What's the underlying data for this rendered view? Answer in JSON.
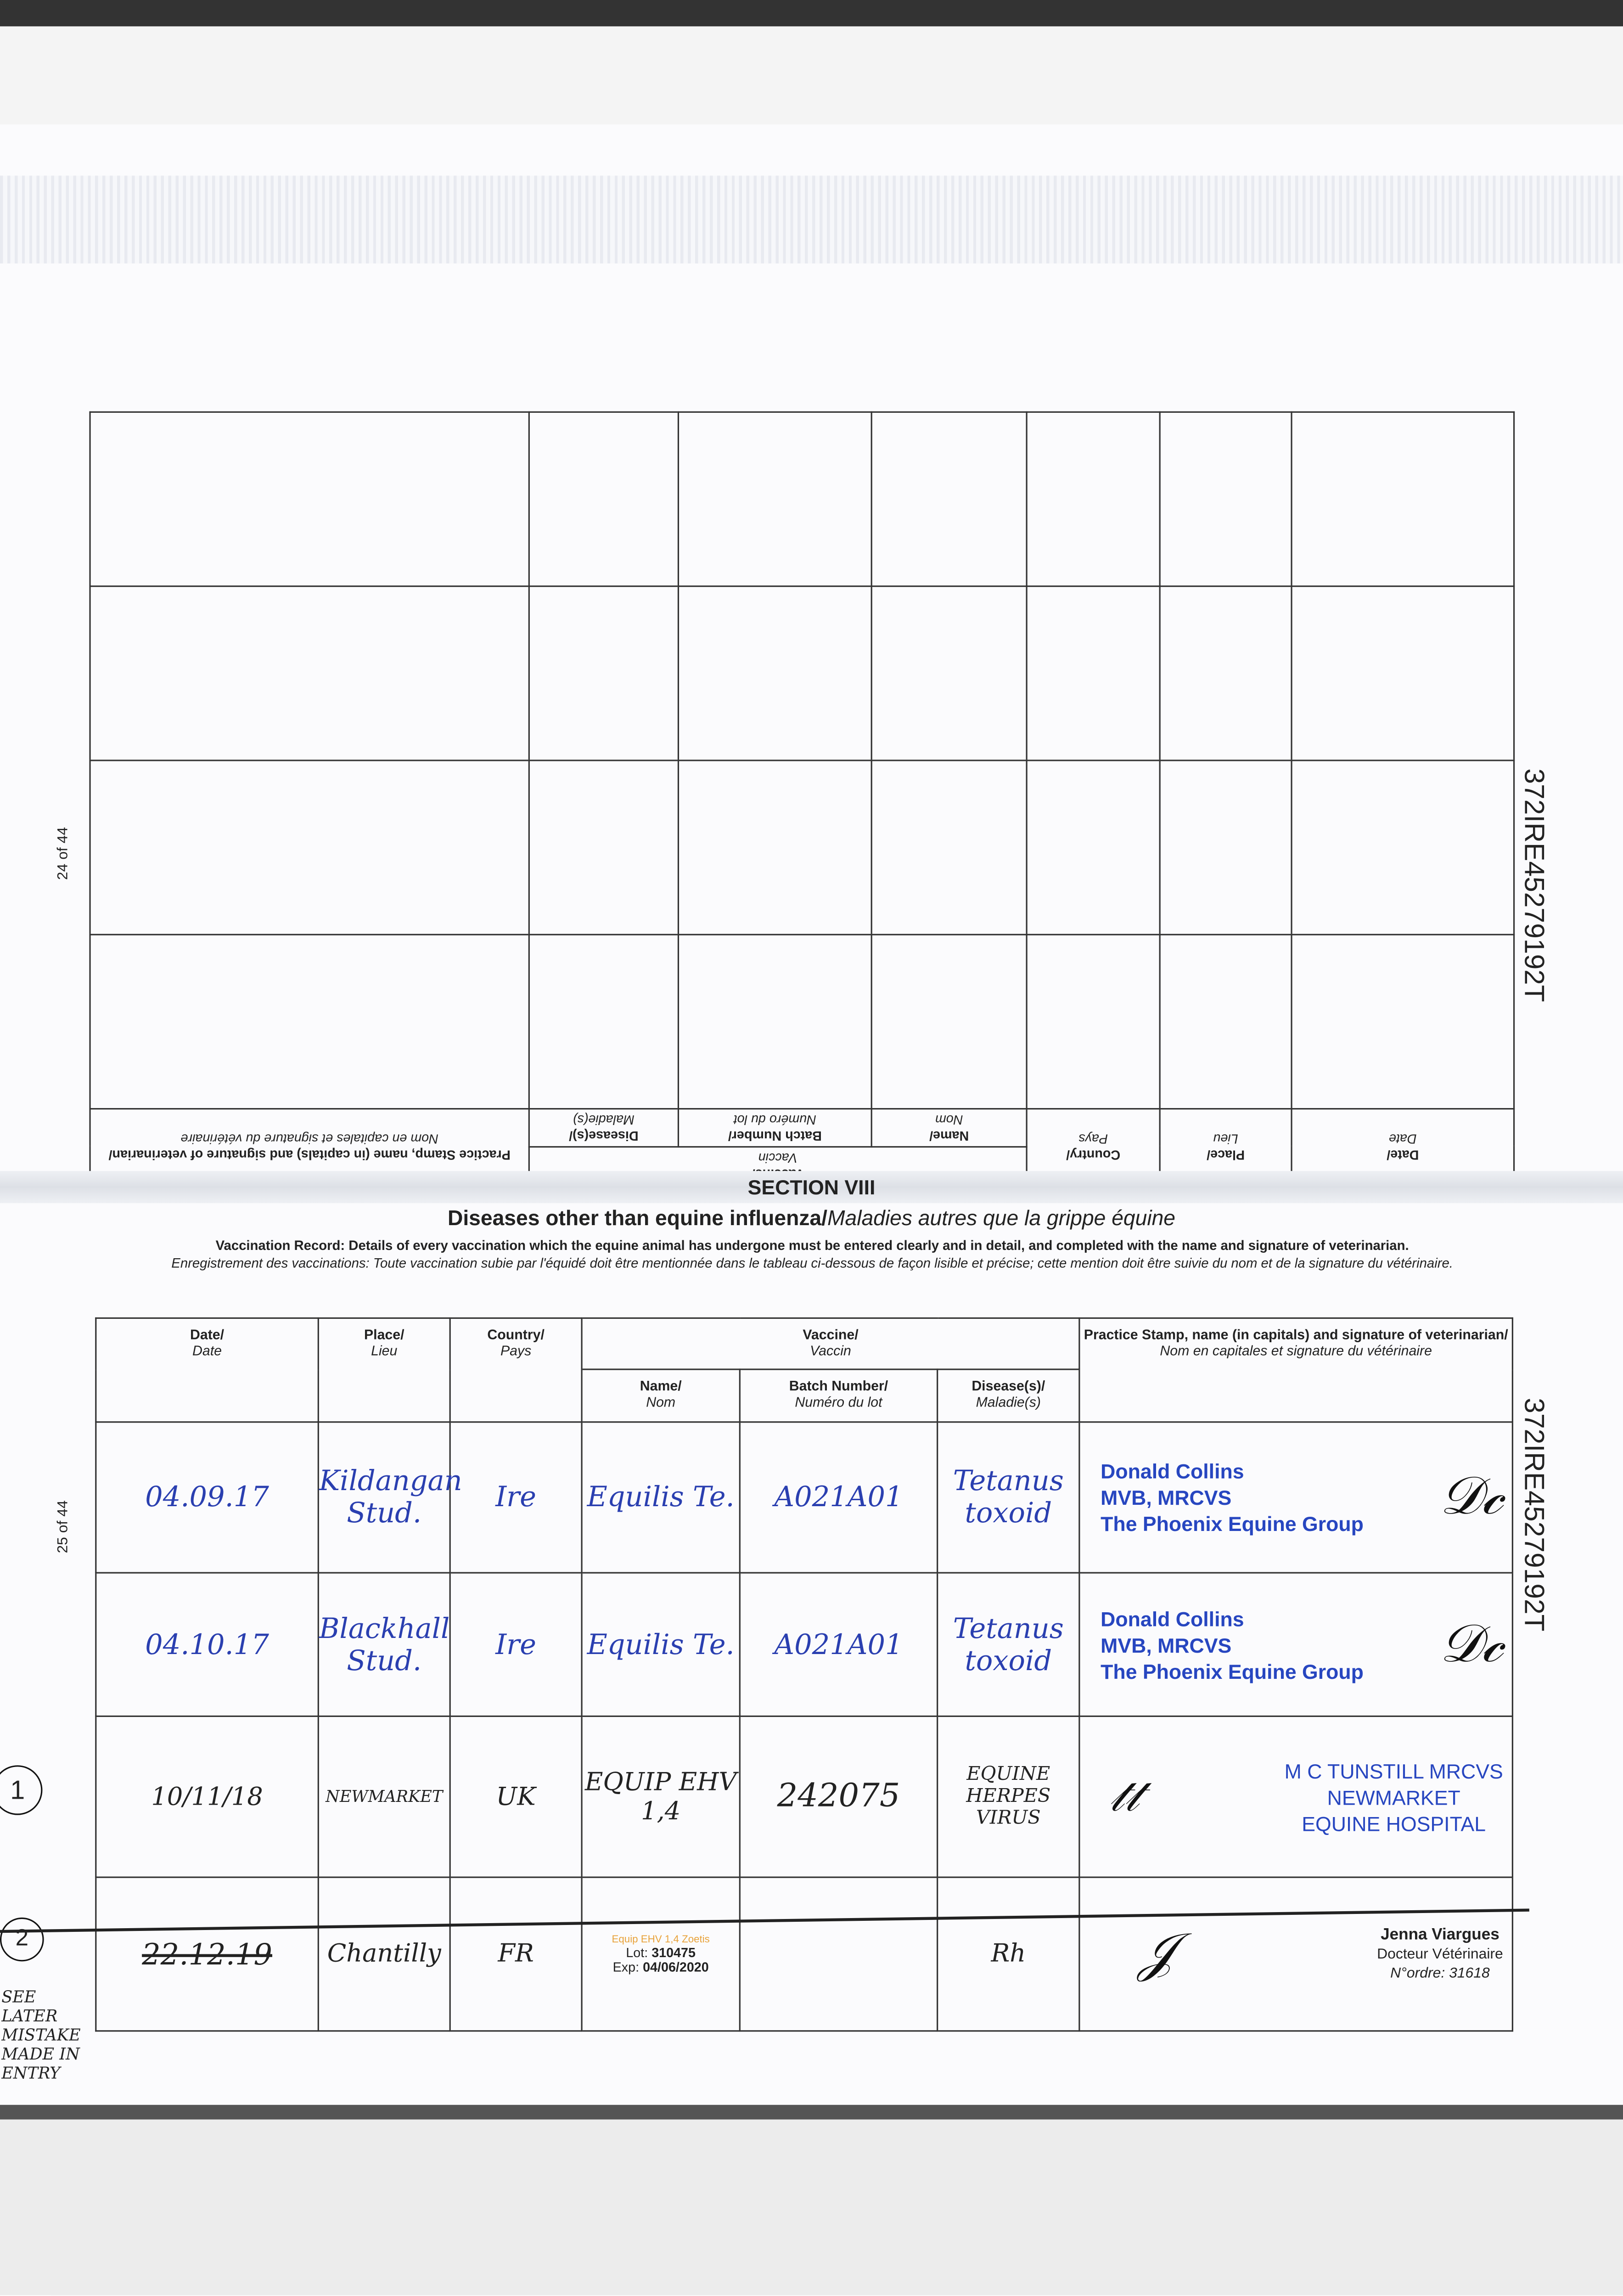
{
  "page_numbers": {
    "upper": "24 of 44",
    "lower": "25 of 44"
  },
  "passport_id": "372IRE45279192T",
  "upper_table": {
    "headers": {
      "date": "Date/",
      "date_fr": "Date",
      "place": "Place/",
      "place_fr": "Lieu",
      "country": "Country/",
      "country_fr": "Pays",
      "vaccine": "Vaccine/",
      "vaccine_fr": "Vaccin",
      "name": "Name/",
      "name_fr": "Nom",
      "batch": "Batch Number/",
      "batch_fr": "Numéro du lot",
      "disease": "Disease(s)/",
      "disease_fr": "Maladie(s)",
      "stamp": "Practice Stamp, name (in capitals) and signature of veterinarian/",
      "stamp_fr": "Nom en capitales et signature du vétérinaire"
    }
  },
  "section": {
    "number": "SECTION VIII",
    "title": "Diseases other than equine influenza/",
    "title_fr": "Maladies autres que la grippe équine",
    "instructions": "Vaccination Record: Details of every vaccination which the equine animal has undergone must be entered clearly and in detail, and completed with the name and signature of veterinarian.",
    "instructions_fr": "Enregistrement des vaccinations: Toute vaccination subie par l'équidé doit être mentionnée dans le tableau ci-dessous de façon lisible et précise; cette mention doit être suivie du nom et de la signature du vétérinaire."
  },
  "table": {
    "headers": {
      "date": "Date/",
      "date_fr": "Date",
      "place": "Place/",
      "place_fr": "Lieu",
      "country": "Country/",
      "country_fr": "Pays",
      "vaccine": "Vaccine/",
      "vaccine_fr": "Vaccin",
      "name": "Name/",
      "name_fr": "Nom",
      "batch": "Batch Number/",
      "batch_fr": "Numéro du lot",
      "disease": "Disease(s)/",
      "disease_fr": "Maladie(s)",
      "stamp": "Practice Stamp, name (in capitals) and signature of veterinarian/",
      "stamp_fr": "Nom en capitales et signature du vétérinaire"
    },
    "rows": [
      {
        "marker": "",
        "date": "04.09.17",
        "place": "Kildangan Stud.",
        "country": "Ire",
        "name": "Equilis Te.",
        "batch": "A021A01",
        "disease": "Tetanus toxoid",
        "stamp": [
          "Donald Collins",
          "MVB, MRCVS",
          "The Phoenix Equine Group"
        ]
      },
      {
        "marker": "",
        "date": "04.10.17",
        "place": "Blackhall Stud.",
        "country": "Ire",
        "name": "Equilis Te.",
        "batch": "A021A01",
        "disease": "Tetanus toxoid",
        "stamp": [
          "Donald Collins",
          "MVB, MRCVS",
          "The Phoenix Equine Group"
        ]
      },
      {
        "marker": "1",
        "date": "10/11/18",
        "place": "NEWMARKET",
        "country": "UK",
        "name": "EQUIP EHV 1,4",
        "batch": "242075",
        "disease": "EQUINE HERPES VIRUS",
        "stamp": [
          "M C TUNSTILL MRCVS",
          "NEWMARKET",
          "EQUINE HOSPITAL"
        ]
      },
      {
        "marker": "2",
        "date": "22.12.19",
        "place": "Chantilly",
        "country": "FR",
        "name_label": {
          "brand": "Equip EHV 1,4 Zoetis",
          "lot_label": "Lot:",
          "lot": "310475",
          "exp_label": "Exp:",
          "exp": "04/06/2020"
        },
        "batch": "",
        "disease": "Rh",
        "stamp": [
          "Jenna Viargues",
          "Docteur Vétérinaire",
          "N°ordre: 31618"
        ]
      }
    ],
    "margin_note": "SEE LATER MISTAKE MADE IN ENTRY"
  },
  "colors": {
    "ink_blue": "#2a3fb0",
    "stamp_blue": "#2746c0",
    "lot_orange": "#e8a23a"
  }
}
